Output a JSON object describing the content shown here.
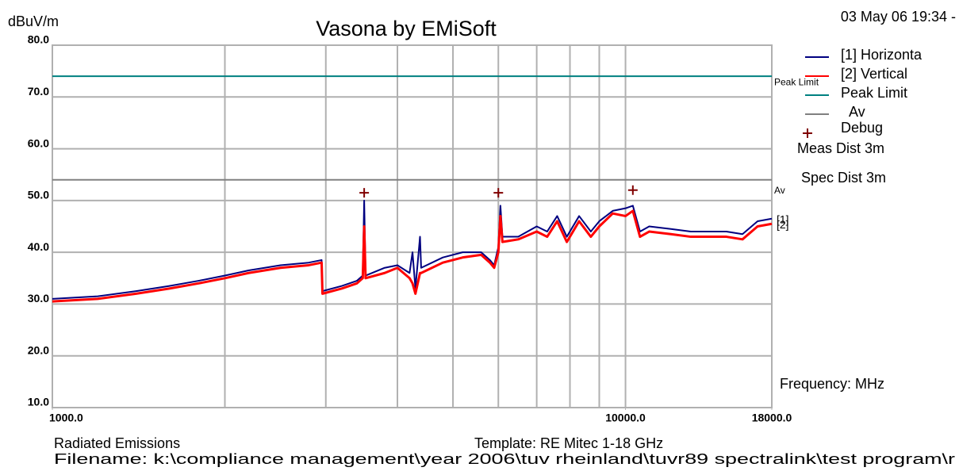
{
  "chart_data": {
    "type": "line",
    "title": "Vasona by EMiSoft",
    "y_label": "dBuV/m",
    "date": "03 May 06 19:34 -",
    "x_label": "Frequency: MHz",
    "annotations": [
      "Meas Dist 3m",
      "Spec Dist 3m"
    ],
    "footer": {
      "left": "Radiated Emissions",
      "template": "Template: RE Mitec 1-18 GHz",
      "filename": "Filename: k:\\compliance management\\year 2006\\tuv rheinland\\tuvr89 spectralink\\test program\\r"
    },
    "xscale": "log",
    "xlim": [
      1000,
      18000
    ],
    "ylim": [
      10,
      80
    ],
    "xticks": [
      {
        "value": 1000,
        "label": "1000.0"
      },
      {
        "value": 10000,
        "label": "10000.0"
      },
      {
        "value": 18000,
        "label": "18000.0"
      }
    ],
    "xgrid": [
      2000,
      3000,
      4000,
      5000,
      6000,
      7000,
      8000,
      9000,
      10000
    ],
    "yticks": [
      {
        "value": 10,
        "label": "10.0"
      },
      {
        "value": 20,
        "label": "20.0"
      },
      {
        "value": 30,
        "label": "30.0"
      },
      {
        "value": 40,
        "label": "40.0"
      },
      {
        "value": 50,
        "label": "50.0"
      },
      {
        "value": 60,
        "label": "60.0"
      },
      {
        "value": 70,
        "label": "70.0"
      },
      {
        "value": 80,
        "label": "80.0"
      }
    ],
    "grid": true,
    "x": [
      1000,
      1200,
      1400,
      1600,
      1800,
      2000,
      2200,
      2500,
      2800,
      2950,
      2960,
      3200,
      3400,
      3480,
      3500,
      3520,
      3800,
      4000,
      4200,
      4250,
      4300,
      4380,
      4400,
      4800,
      5200,
      5600,
      5800,
      5900,
      6000,
      6050,
      6100,
      6500,
      7000,
      7300,
      7600,
      7900,
      8300,
      8700,
      9000,
      9500,
      10000,
      10300,
      10600,
      11000,
      12000,
      13000,
      14000,
      15000,
      16000,
      17000,
      18000
    ],
    "series": [
      {
        "name": "[1] Horizonta",
        "end_label": "[1]",
        "color": "#000080",
        "values": [
          31,
          31.5,
          32.5,
          33.5,
          34.5,
          35.5,
          36.5,
          37.5,
          38,
          38.5,
          32.5,
          33.5,
          34.5,
          35.5,
          50,
          35.5,
          37,
          37.5,
          36,
          40,
          33,
          43,
          37,
          39,
          40,
          40,
          38.5,
          37.5,
          41,
          49,
          43,
          43,
          45,
          44,
          47,
          43,
          47,
          44,
          46,
          48,
          48.5,
          49,
          44,
          45,
          44.5,
          44,
          44,
          44,
          43.5,
          46,
          46.5
        ]
      },
      {
        "name": "[2] Vertical",
        "end_label": "[2]",
        "color": "#ff0000",
        "values": [
          30.5,
          31,
          32,
          33,
          34,
          35,
          36,
          37,
          37.5,
          38,
          32,
          33,
          34,
          35,
          45,
          35,
          36,
          37,
          35,
          34,
          32,
          36,
          36,
          38,
          39,
          39.5,
          38,
          37,
          40,
          47,
          42,
          42.5,
          44,
          43,
          46,
          42,
          46,
          43,
          45,
          47.5,
          47,
          48,
          43,
          44,
          43.5,
          43,
          43,
          43,
          42.5,
          45,
          45.5
        ]
      }
    ],
    "limits": [
      {
        "name": "Peak Limit",
        "value": 74,
        "color": "#008080"
      },
      {
        "name": "Av",
        "value": 54,
        "color": "#808080"
      }
    ],
    "markers": {
      "name": "Debug",
      "color": "#800000",
      "x": [
        3500,
        6000,
        10300
      ],
      "values": [
        51.5,
        51.5,
        52
      ]
    }
  }
}
